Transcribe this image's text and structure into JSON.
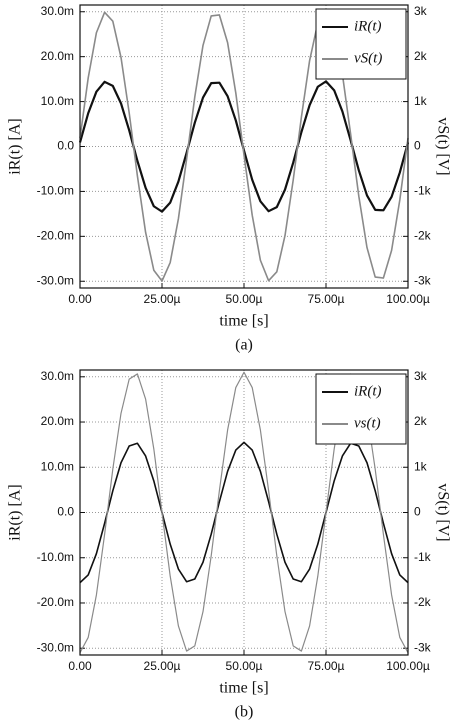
{
  "chart_data": [
    {
      "type": "line",
      "caption": "(a)",
      "x_label": "time [s]",
      "y_label": "iR(t) [A]",
      "y2_label": "vS(t) [V]",
      "x": [
        0,
        2.5e-06,
        5e-06,
        7.5e-06,
        1e-05,
        1.25e-05,
        1.5e-05,
        1.75e-05,
        2e-05,
        2.25e-05,
        2.5e-05,
        2.75e-05,
        3e-05,
        3.25e-05,
        3.5e-05,
        3.75e-05,
        4e-05,
        4.25e-05,
        4.5e-05,
        4.75e-05,
        5e-05,
        5.25e-05,
        5.5e-05,
        5.75e-05,
        6e-05,
        6.25e-05,
        6.5e-05,
        6.75e-05,
        7e-05,
        7.25e-05,
        7.5e-05,
        7.75e-05,
        8e-05,
        8.25e-05,
        8.5e-05,
        8.75e-05,
        9e-05,
        9.25e-05,
        9.5e-05,
        9.75e-05,
        0.0001
      ],
      "series": [
        {
          "name": "iR(t)",
          "color": "#111111",
          "width": 2.2,
          "values": [
            0.0009,
            0.0074,
            0.0122,
            0.0144,
            0.0135,
            0.0096,
            0.0036,
            -0.0032,
            -0.0092,
            -0.0133,
            -0.0145,
            -0.0125,
            -0.0078,
            -0.0014,
            0.0053,
            0.0109,
            0.0141,
            0.0142,
            0.0112,
            0.0058,
            -0.0009,
            -0.0074,
            -0.0122,
            -0.0144,
            -0.0135,
            -0.0096,
            -0.0036,
            0.0032,
            0.0092,
            0.0133,
            0.0145,
            0.0125,
            0.0078,
            0.0014,
            -0.0053,
            -0.0109,
            -0.0141,
            -0.0142,
            -0.0112,
            -0.0058,
            0.0009
          ]
        },
        {
          "name": "vS(t)",
          "color": "#8a8a8a",
          "width": 1.6,
          "axis": "y2",
          "values": [
            189,
            1527,
            2532,
            2988,
            2790,
            1983,
            747,
            -654,
            -1911,
            -2754,
            -2994,
            -2583,
            -1608,
            -282,
            1104,
            2250,
            2907,
            2928,
            2313,
            1191,
            -189,
            -1527,
            -2532,
            -2988,
            -2790,
            -1983,
            -747,
            654,
            1911,
            2754,
            2994,
            2583,
            1608,
            282,
            -1104,
            -2250,
            -2907,
            -2928,
            -2313,
            -1191,
            189
          ]
        }
      ],
      "xlim": [
        0,
        0.0001
      ],
      "xticks": [
        {
          "value": 0,
          "label": "0.00"
        },
        {
          "value": 2.5e-05,
          "label": "25.00µ"
        },
        {
          "value": 5e-05,
          "label": "50.00µ"
        },
        {
          "value": 7.5e-05,
          "label": "75.00µ"
        },
        {
          "value": 0.0001,
          "label": "100.00µ"
        }
      ],
      "ylim": [
        -0.0315,
        0.0315
      ],
      "yticks": [
        {
          "value": -0.03,
          "label": "-30.0m"
        },
        {
          "value": -0.02,
          "label": "-20.0m"
        },
        {
          "value": -0.01,
          "label": "-10.0m"
        },
        {
          "value": 0,
          "label": "0.0"
        },
        {
          "value": 0.01,
          "label": "10.0m"
        },
        {
          "value": 0.02,
          "label": "20.0m"
        },
        {
          "value": 0.03,
          "label": "30.0m"
        }
      ],
      "y2lim": [
        -3150,
        3150
      ],
      "y2ticks": [
        {
          "value": -3000,
          "label": "-3k"
        },
        {
          "value": -2000,
          "label": "-2k"
        },
        {
          "value": -1000,
          "label": "-1k"
        },
        0,
        {
          "value": 1000,
          "label": "1k"
        },
        {
          "value": 2000,
          "label": "2k"
        },
        {
          "value": 3000,
          "label": "3k"
        }
      ],
      "grid": true,
      "legend": "top-right"
    },
    {
      "type": "line",
      "caption": "(b)",
      "x_label": "time [s]",
      "y_label": "iR(t) [A]",
      "y2_label": "vS(t) [V]",
      "x": [
        0,
        2.5e-06,
        5e-06,
        7.5e-06,
        1e-05,
        1.25e-05,
        1.5e-05,
        1.75e-05,
        2e-05,
        2.25e-05,
        2.5e-05,
        2.75e-05,
        3e-05,
        3.25e-05,
        3.5e-05,
        3.75e-05,
        4e-05,
        4.25e-05,
        4.5e-05,
        4.75e-05,
        5e-05,
        5.25e-05,
        5.5e-05,
        5.75e-05,
        6e-05,
        6.25e-05,
        6.5e-05,
        6.75e-05,
        7e-05,
        7.25e-05,
        7.5e-05,
        7.75e-05,
        8e-05,
        8.25e-05,
        8.5e-05,
        8.75e-05,
        9e-05,
        9.25e-05,
        9.5e-05,
        9.75e-05,
        0.0001
      ],
      "series": [
        {
          "name": "iR(t)",
          "color": "#111111",
          "width": 1.6,
          "values": [
            -0.0155,
            -0.0138,
            -0.0091,
            -0.0024,
            0.0048,
            0.011,
            0.0147,
            0.0153,
            0.0125,
            0.007,
            0,
            -0.007,
            -0.0125,
            -0.0153,
            -0.0147,
            -0.011,
            -0.0048,
            0.0024,
            0.0091,
            0.0138,
            0.0155,
            0.0138,
            0.0091,
            0.0024,
            -0.0048,
            -0.011,
            -0.0147,
            -0.0153,
            -0.0125,
            -0.007,
            0,
            0.007,
            0.0125,
            0.0153,
            0.0147,
            0.011,
            0.0048,
            -0.0024,
            -0.0091,
            -0.0138,
            -0.0155
          ]
        },
        {
          "name": "vs(t)",
          "color": "#8a8a8a",
          "width": 1.2,
          "axis": "y2",
          "values": [
            -3100,
            -2762,
            -1823,
            -484,
            958,
            2192,
            2948,
            3063,
            2508,
            1407,
            0,
            -1407,
            -2508,
            -3063,
            -2948,
            -2192,
            -958,
            484,
            1823,
            2762,
            3100,
            2762,
            1823,
            484,
            -958,
            -2192,
            -2948,
            -3063,
            -2508,
            -1407,
            0,
            1407,
            2508,
            3063,
            2948,
            2192,
            958,
            -484,
            -1823,
            -2762,
            -3100
          ]
        }
      ],
      "xlim": [
        0,
        0.0001
      ],
      "xticks": [
        {
          "value": 0,
          "label": "0.00"
        },
        {
          "value": 2.5e-05,
          "label": "25.00µ"
        },
        {
          "value": 5e-05,
          "label": "50.00µ"
        },
        {
          "value": 7.5e-05,
          "label": "75.00µ"
        },
        {
          "value": 0.0001,
          "label": "100.00µ"
        }
      ],
      "ylim": [
        -0.0315,
        0.0315
      ],
      "yticks": [
        {
          "value": -0.03,
          "label": "-30.0m"
        },
        {
          "value": -0.02,
          "label": "-20.0m"
        },
        {
          "value": -0.01,
          "label": "-10.0m"
        },
        {
          "value": 0,
          "label": "0.0"
        },
        {
          "value": 0.01,
          "label": "10.0m"
        },
        {
          "value": 0.02,
          "label": "20.0m"
        },
        {
          "value": 0.03,
          "label": "30.0m"
        }
      ],
      "y2lim": [
        -3150,
        3150
      ],
      "y2ticks": [
        {
          "value": -3000,
          "label": "-3k"
        },
        {
          "value": -2000,
          "label": "-2k"
        },
        {
          "value": -1000,
          "label": "-1k"
        },
        0,
        {
          "value": 1000,
          "label": "1k"
        },
        {
          "value": 2000,
          "label": "2k"
        },
        {
          "value": 3000,
          "label": "3k"
        }
      ],
      "grid": true,
      "legend": "top-right"
    }
  ]
}
